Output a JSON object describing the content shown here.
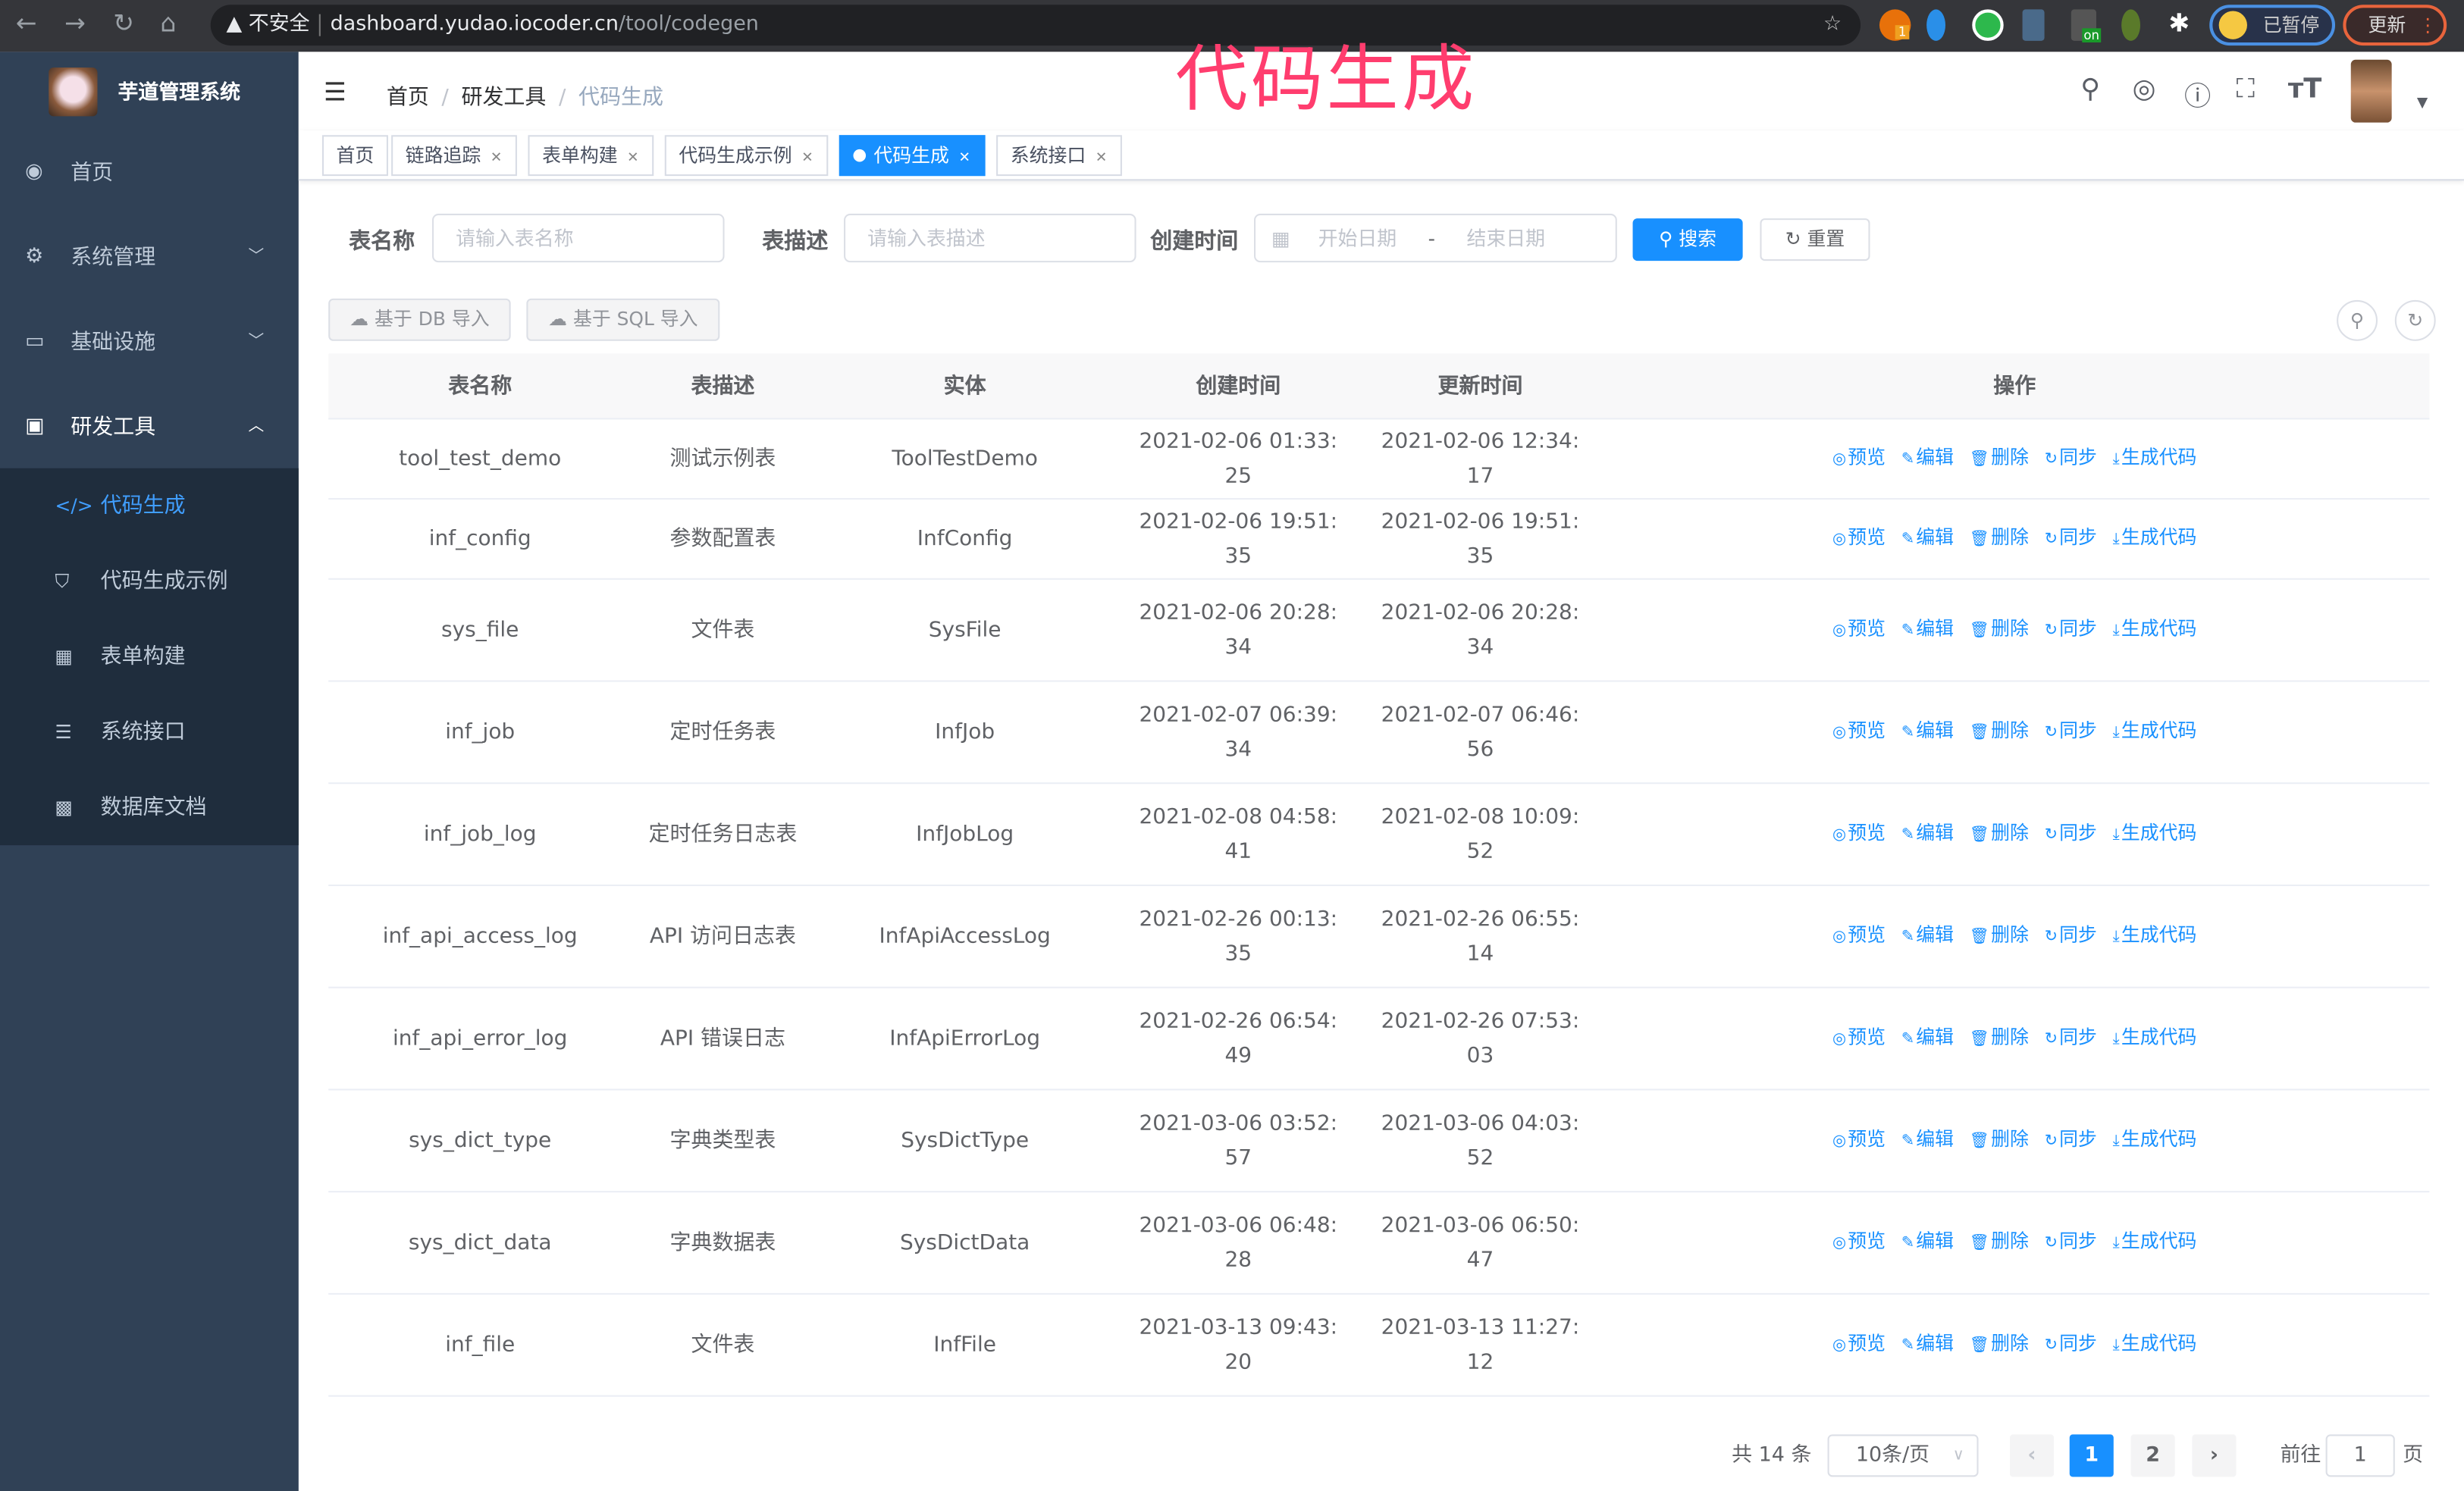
{
  "browser": {
    "security": "不安全",
    "url_host": "dashboard.yudao.iocoder.cn",
    "url_path": "/tool/codegen",
    "paused": "已暂停",
    "update": "更新",
    "ext_badge": "1",
    "ext_on": "on"
  },
  "sidebar": {
    "title": "芋道管理系统",
    "items": [
      {
        "label": "首页",
        "icon": "dashboard-icon"
      },
      {
        "label": "系统管理",
        "icon": "gear-icon"
      },
      {
        "label": "基础设施",
        "icon": "monitor-icon"
      },
      {
        "label": "研发工具",
        "icon": "toolbox-icon"
      }
    ],
    "subitems": [
      {
        "label": "代码生成",
        "icon": "code-icon",
        "active": true
      },
      {
        "label": "代码生成示例",
        "icon": "shield-icon"
      },
      {
        "label": "表单构建",
        "icon": "form-icon"
      },
      {
        "label": "系统接口",
        "icon": "sliders-icon"
      },
      {
        "label": "数据库文档",
        "icon": "table-icon"
      }
    ]
  },
  "navbar": {
    "breadcrumb": [
      "首页",
      "研发工具",
      "代码生成"
    ]
  },
  "overlay_title": "代码生成",
  "tags": [
    {
      "label": "首页"
    },
    {
      "label": "链路追踪"
    },
    {
      "label": "表单构建"
    },
    {
      "label": "代码生成示例"
    },
    {
      "label": "代码生成",
      "active": true
    },
    {
      "label": "系统接口"
    }
  ],
  "search": {
    "table_name_label": "表名称",
    "table_name_placeholder": "请输入表名称",
    "table_desc_label": "表描述",
    "table_desc_placeholder": "请输入表描述",
    "created_label": "创建时间",
    "start_placeholder": "开始日期",
    "range_sep": "-",
    "end_placeholder": "结束日期",
    "search_btn": "搜索",
    "reset_btn": "重置"
  },
  "actions": {
    "import_db": "基于 DB 导入",
    "import_sql": "基于 SQL 导入"
  },
  "table": {
    "columns": [
      "表名称",
      "表描述",
      "实体",
      "创建时间",
      "更新时间",
      "操作"
    ],
    "ops": [
      "预览",
      "编辑",
      "删除",
      "同步",
      "生成代码"
    ],
    "rows": [
      [
        "tool_test_demo",
        "测试示例表",
        "ToolTestDemo",
        "2021-02-06 01:33:25",
        "2021-02-06 12:34:17"
      ],
      [
        "inf_config",
        "参数配置表",
        "InfConfig",
        "2021-02-06 19:51:35",
        "2021-02-06 19:51:35"
      ],
      [
        "sys_file",
        "文件表",
        "SysFile",
        "2021-02-06 20:28:34",
        "2021-02-06 20:28:34"
      ],
      [
        "inf_job",
        "定时任务表",
        "InfJob",
        "2021-02-07 06:39:34",
        "2021-02-07 06:46:56"
      ],
      [
        "inf_job_log",
        "定时任务日志表",
        "InfJobLog",
        "2021-02-08 04:58:41",
        "2021-02-08 10:09:52"
      ],
      [
        "inf_api_access_log",
        "API 访问日志表",
        "InfApiAccessLog",
        "2021-02-26 00:13:35",
        "2021-02-26 06:55:14"
      ],
      [
        "inf_api_error_log",
        "API 错误日志",
        "InfApiErrorLog",
        "2021-02-26 06:54:49",
        "2021-02-26 07:53:03"
      ],
      [
        "sys_dict_type",
        "字典类型表",
        "SysDictType",
        "2021-03-06 03:52:57",
        "2021-03-06 04:03:52"
      ],
      [
        "sys_dict_data",
        "字典数据表",
        "SysDictData",
        "2021-03-06 06:48:28",
        "2021-03-06 06:50:47"
      ],
      [
        "inf_file",
        "文件表",
        "InfFile",
        "2021-03-13 09:43:20",
        "2021-03-13 11:27:12"
      ]
    ]
  },
  "pagination": {
    "total": "共 14 条",
    "page_size": "10条/页",
    "pages": [
      "1",
      "2"
    ],
    "current": "1",
    "goto_label": "前往",
    "goto_value": "1",
    "goto_suffix": "页"
  },
  "colors": {
    "primary": "#1890ff",
    "sidebar": "#304156",
    "submenu": "#1f2d3d",
    "overlay": "#ff3d6e"
  }
}
